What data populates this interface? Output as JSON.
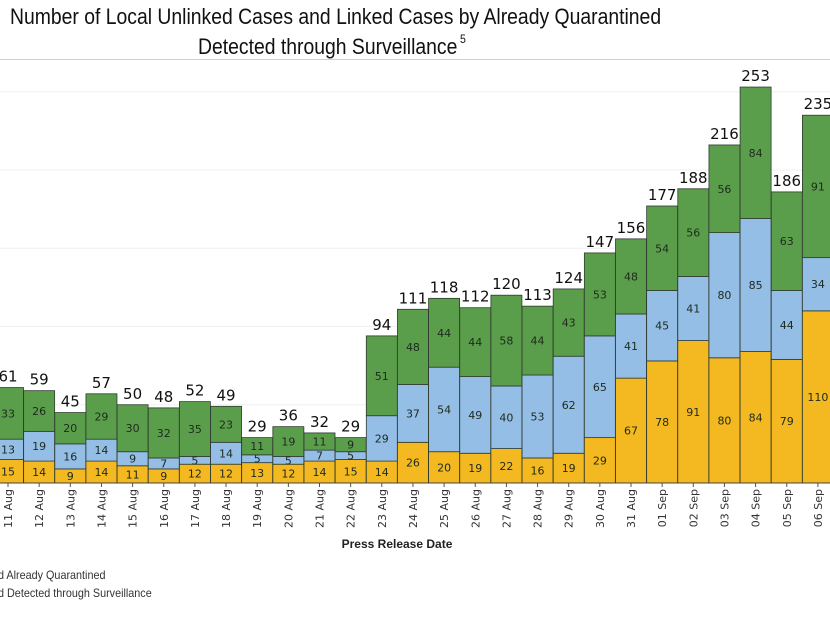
{
  "chart_data": {
    "type": "bar",
    "stacked": true,
    "title_line1": "Number of Local Unlinked Cases and Linked Cases by Already Quarantined",
    "title_line2": "Detected through Surveillance",
    "title_footnote": "5",
    "xlabel": "Press Release Date",
    "ylabel": "",
    "ylim": [
      0,
      260
    ],
    "grid": true,
    "categories": [
      "11 Aug",
      "12 Aug",
      "13 Aug",
      "14 Aug",
      "15 Aug",
      "16 Aug",
      "17 Aug",
      "18 Aug",
      "19 Aug",
      "20 Aug",
      "21 Aug",
      "22 Aug",
      "23 Aug",
      "24 Aug",
      "25 Aug",
      "26 Aug",
      "27 Aug",
      "28 Aug",
      "29 Aug",
      "30 Aug",
      "31 Aug",
      "01 Sep",
      "02 Sep",
      "03 Sep",
      "04 Sep",
      "05 Sep",
      "06 Sep"
    ],
    "series": [
      {
        "name": "bottom (yellow)",
        "color": "#F4B920",
        "values": [
          15,
          14,
          9,
          14,
          11,
          9,
          12,
          12,
          13,
          12,
          14,
          15,
          14,
          26,
          20,
          19,
          22,
          16,
          19,
          29,
          67,
          78,
          91,
          80,
          84,
          79,
          110
        ]
      },
      {
        "name": "middle (blue)",
        "color": "#94BEE5",
        "values": [
          13,
          19,
          16,
          14,
          9,
          7,
          5,
          14,
          5,
          5,
          7,
          5,
          29,
          37,
          54,
          49,
          40,
          53,
          62,
          65,
          41,
          45,
          41,
          80,
          85,
          44,
          34
        ]
      },
      {
        "name": "top (green)",
        "color": "#5A9E4B",
        "values": [
          33,
          26,
          20,
          29,
          30,
          32,
          35,
          23,
          11,
          19,
          11,
          9,
          51,
          48,
          44,
          44,
          58,
          44,
          43,
          53,
          48,
          54,
          56,
          56,
          84,
          63,
          91
        ]
      }
    ],
    "totals": [
      61,
      59,
      45,
      57,
      50,
      48,
      52,
      49,
      29,
      36,
      32,
      29,
      94,
      111,
      118,
      112,
      120,
      113,
      124,
      147,
      156,
      177,
      188,
      216,
      253,
      186,
      235
    ],
    "legend": [
      "d Already Quarantined",
      "d Detected through Surveillance"
    ],
    "legend_position": "bottom-left"
  }
}
